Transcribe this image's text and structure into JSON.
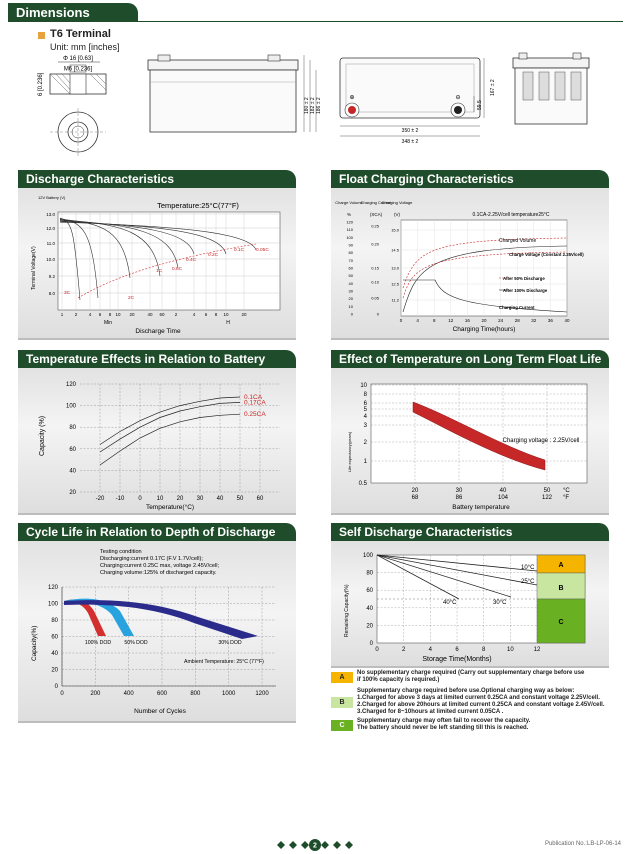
{
  "sections": {
    "dimensions": "Dimensions",
    "discharge": "Discharge Characteristics",
    "float": "Float Charging Characteristics",
    "temp_capacity": "Temperature Effects in Relation to Battery Capacity",
    "float_life": "Effect of Temperature on Long Term Float Life",
    "cycle": "Cycle Life in Relation to Depth of Discharge",
    "self_discharge": "Self Discharge Characteristics"
  },
  "terminal": {
    "title": "T6 Terminal",
    "unit": "Unit: mm [inches]",
    "dim1": "Φ 16 [0.63]",
    "dim2": "M6 [0.236]",
    "dim3": "6 [0.236]"
  },
  "drawing": {
    "width1": "350 ± 2",
    "width2": "348 ± 2",
    "height1": "180 ± 2",
    "height2": "182 ± 2",
    "height3": "186 ± 2",
    "depth": "167 ± 2",
    "inner": "59.5",
    "plus": "⊕",
    "minus": "⊖"
  },
  "discharge_chart": {
    "chart_data": {
      "type": "line",
      "title": "Temperature:25°C(77°F)",
      "ylabel": "Terminal Voltage(V)",
      "ylabel_top": "12V Battery (V)",
      "xlabel": "Discharge Time",
      "xlabel_min": "Min",
      "xlabel_h": "H",
      "yticks": [
        "13.0",
        "12.0",
        "11.0",
        "10.0",
        "9.2",
        "8.0"
      ],
      "xticks": [
        "1",
        "2",
        "4",
        "6",
        "8",
        "10",
        "20",
        "40",
        "60",
        "2",
        "4",
        "6",
        "8",
        "10",
        "20"
      ],
      "curve_labels": [
        "3C",
        "2C",
        "1C",
        "0.6C",
        "0.4C",
        "0.2C",
        "0.1C",
        "0.05C"
      ],
      "series": [
        {
          "name": "3C"
        },
        {
          "name": "2C"
        },
        {
          "name": "1C"
        },
        {
          "name": "0.6C"
        },
        {
          "name": "0.4C"
        },
        {
          "name": "0.2C"
        },
        {
          "name": "0.1C"
        },
        {
          "name": "0.05C"
        }
      ]
    }
  },
  "float_chart": {
    "chart_data": {
      "type": "line",
      "header_left": [
        "Charge Volume",
        "Charging Current",
        "Charging Voltage"
      ],
      "units": [
        "%",
        "(XCA)",
        "(V)"
      ],
      "note": "0.1CA-2.25V/cell   temperature25°C",
      "y1ticks": [
        "120",
        "110",
        "100",
        "90",
        "80",
        "70",
        "60",
        "50",
        "40",
        "30",
        "20",
        "10",
        "0"
      ],
      "y2ticks": [
        "0.25",
        "0.20",
        "0.15",
        "0.10",
        "0.05",
        "0"
      ],
      "y3ticks": [
        "15.0",
        "14.5",
        "13.0",
        "12.5",
        "11.2"
      ],
      "xticks": [
        "0",
        "4",
        "8",
        "12",
        "16",
        "20",
        "24",
        "28",
        "32",
        "36",
        "40"
      ],
      "xlabel": "Charging Time(hours)",
      "labels": {
        "charged_volume": "Charged Volume",
        "charge_voltage": "Charge Voltage (Constant 2.25V/cell)",
        "after50": "After 50% Discharge",
        "after100": "After 100% Discharge",
        "charging_current": "Charging Current"
      }
    }
  },
  "temp_cap_chart": {
    "chart_data": {
      "type": "line",
      "ylabel": "Capacity (%)",
      "xlabel": "Temperature(°C)",
      "yticks": [
        "120",
        "100",
        "80",
        "60",
        "40",
        "20"
      ],
      "xticks": [
        "-20",
        "-10",
        "0",
        "10",
        "20",
        "30",
        "40",
        "50",
        "60"
      ],
      "series": [
        {
          "name": "0.1CA",
          "x": [
            -20,
            -10,
            0,
            10,
            20,
            30,
            40,
            50
          ],
          "y": [
            64,
            76,
            86,
            94,
            100,
            104,
            107,
            108
          ]
        },
        {
          "name": "0.17CA",
          "x": [
            -20,
            -10,
            0,
            10,
            20,
            30,
            40,
            50
          ],
          "y": [
            57,
            69,
            80,
            89,
            95,
            99,
            102,
            103
          ]
        },
        {
          "name": "0.25CA",
          "x": [
            -20,
            -10,
            0,
            10,
            20,
            30,
            40,
            50
          ],
          "y": [
            45,
            58,
            70,
            79,
            85,
            89,
            91,
            92
          ]
        }
      ]
    }
  },
  "float_life_chart": {
    "chart_data": {
      "type": "area",
      "ylabel": "Life expectancy(years)",
      "xlabel": "Battery temperature",
      "yticks": [
        "10",
        "8",
        "6",
        "5",
        "4",
        "3",
        "2",
        "1",
        "0.5"
      ],
      "xticks_c": [
        "20",
        "30",
        "40",
        "50"
      ],
      "xticks_f": [
        "68",
        "86",
        "104",
        "122"
      ],
      "unit_c": "°C",
      "unit_f": "°F",
      "annotation": "Charging voltage : 2.25V/cell"
    }
  },
  "cycle_chart": {
    "chart_data": {
      "type": "area",
      "conditions": [
        "Testing condition",
        "Discharging:current 0.17C (F.V 1.7V/cell);",
        "Charging:current 0.25C max, voltage 2.45V/cell;",
        "Charging volume:125% of discharged capacity."
      ],
      "ylabel": "Capacity(%)",
      "xlabel": "Number of Cycles",
      "yticks": [
        "120",
        "100",
        "80",
        "60",
        "40",
        "20",
        "0"
      ],
      "xticks": [
        "0",
        "200",
        "400",
        "600",
        "800",
        "1000",
        "1200"
      ],
      "dod_labels": [
        "100% DOD",
        "50% DOD",
        "30% DOD"
      ],
      "ambient": "Ambient Temperature: 25°C (77°F)"
    }
  },
  "self_chart": {
    "chart_data": {
      "type": "line",
      "ylabel": "Remaining Capacity(%)",
      "xlabel": "Storage Time(Months)",
      "yticks": [
        "100",
        "80",
        "60",
        "40",
        "20",
        "0"
      ],
      "xticks": [
        "0",
        "2",
        "4",
        "6",
        "8",
        "10",
        "12"
      ],
      "series_labels": [
        "10°C",
        "25°C",
        "40°C",
        "30°C"
      ],
      "zones": [
        "A",
        "B",
        "C"
      ],
      "zone_colors": [
        "#f4b400",
        "#c8e6a0",
        "#6ab023"
      ]
    }
  },
  "legend": {
    "a": "No supplementary charge required (Carry out supplementary charge before use if 100% capacity is required.)",
    "b_title": "Supplementary charge required before use.Optional charging way as below:",
    "b1": "1.Charged for above 3 days at limited current 0.25CA and constant voltage 2.25V/cell.",
    "b2": "2.Charged for above 20hours at limited current 0.25CA and constant voltage 2.45V/cell.",
    "b3": "3.Charged for 8~10hours at limited current 0.05CA .",
    "c1": "Supplementary charge may often fail to recover the capacity.",
    "c2": "The battery should never be  left standing till this is reached."
  },
  "footer": {
    "page": "2",
    "publication": "Publication No.:LB-LP-06-14"
  }
}
